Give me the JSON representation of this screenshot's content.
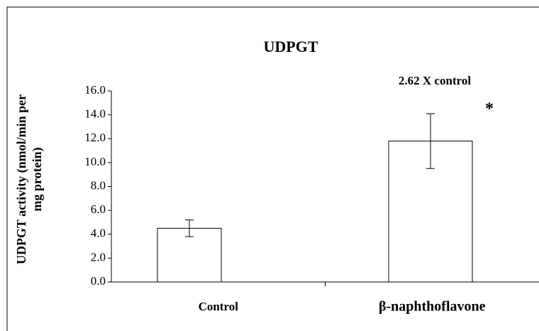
{
  "chart_data": {
    "type": "bar",
    "title": "UDPGT",
    "ylabel": [
      "UDPGT activity (nmol/min per",
      "mg protein)"
    ],
    "categories": [
      "Control",
      "β-naphthoflavone"
    ],
    "values": [
      4.5,
      11.8
    ],
    "errors": [
      0.7,
      2.3
    ],
    "color": "#ffffff",
    "ylim": [
      0,
      16
    ],
    "yticks": [
      {
        "value": 0,
        "label": "0.0"
      },
      {
        "value": 2,
        "label": "2.0"
      },
      {
        "value": 4,
        "label": "4.0"
      },
      {
        "value": 6,
        "label": "6.0"
      },
      {
        "value": 8,
        "label": "8.0"
      },
      {
        "value": 10,
        "label": "10.0"
      },
      {
        "value": 12,
        "label": "12.0"
      },
      {
        "value": 14,
        "label": "14.0"
      },
      {
        "value": 16,
        "label": "16.0"
      }
    ],
    "grid": false,
    "annotations": [
      "2.62 X control",
      "*"
    ]
  }
}
